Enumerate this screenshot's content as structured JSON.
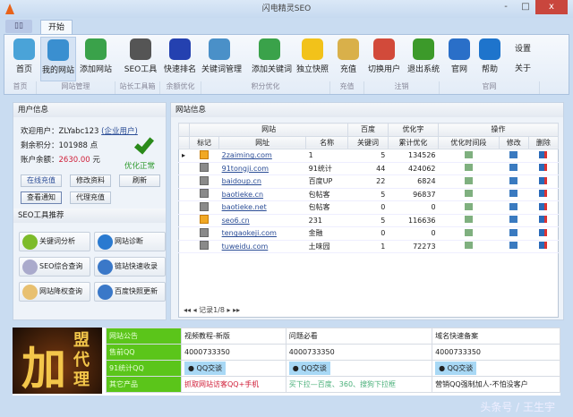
{
  "window": {
    "title": "闪电精灵SEO",
    "minimize": "-",
    "maximize": "□",
    "close": "x"
  },
  "tabs": {
    "file": "▯▯",
    "start": "开始"
  },
  "ribbon": {
    "buttons": [
      {
        "label": "首页",
        "icon": "home-icon",
        "color": "#4aa3d8"
      },
      {
        "label": "我的网站",
        "icon": "globe-icon",
        "color": "#3a8fd0"
      },
      {
        "label": "添加网站",
        "icon": "globe-add-icon",
        "color": "#3aa24a"
      },
      {
        "label": "SEO工具",
        "icon": "tools-icon",
        "color": "#555"
      },
      {
        "label": "快速排名",
        "icon": "baidu-paw-icon",
        "color": "#2441b0"
      },
      {
        "label": "关键词管理",
        "icon": "sitemap-icon",
        "color": "#4a90c8"
      },
      {
        "label": "添加关键词",
        "icon": "globe-add-icon",
        "color": "#3aa24a"
      },
      {
        "label": "独立快照",
        "icon": "star-icon",
        "color": "#f2c21a"
      },
      {
        "label": "充值",
        "icon": "wallet-icon",
        "color": "#d9b04a"
      },
      {
        "label": "切换用户",
        "icon": "users-icon",
        "color": "#d24a3a"
      },
      {
        "label": "退出系统",
        "icon": "exit-icon",
        "color": "#3c9a2a"
      },
      {
        "label": "官网",
        "icon": "ie-icon",
        "color": "#2a6fc8"
      },
      {
        "label": "帮助",
        "icon": "help-icon",
        "color": "#1e74cc"
      }
    ],
    "side": [
      "设置",
      "关于"
    ],
    "groups": [
      "首页",
      "网站管理",
      "站长工具箱",
      "余额优化",
      "积分优化",
      "充值",
      "注销",
      "官网"
    ]
  },
  "user": {
    "title": "用户信息",
    "welcome_label": "欢迎用户：",
    "username": "ZLYabc123",
    "usertype": "(企业用户)",
    "points_label": "剩余积分：",
    "points": "101988 点",
    "balance_label": "账户余额：",
    "balance": "2630.00",
    "balance_unit": "元",
    "status": "优化正常",
    "buttons": [
      "在线充值",
      "修改资料",
      "刷新",
      "查看通知",
      "代理充值"
    ]
  },
  "tools": {
    "title": "SEO工具推荐",
    "items": [
      {
        "label": "关键词分析",
        "color": "#7dbb2a"
      },
      {
        "label": "网站诊断",
        "color": "#2a7ad0"
      },
      {
        "label": "SEO综合查询",
        "color": "#aac"
      },
      {
        "label": "链站快速收录",
        "color": "#3a78c8"
      },
      {
        "label": "网站降权查询",
        "color": "#e8c070"
      },
      {
        "label": "百度快照更新",
        "color": "#3a78c8"
      }
    ]
  },
  "sites": {
    "title": "网站信息",
    "group_headers": [
      "网站",
      "百度",
      "优化字",
      "操作"
    ],
    "columns": [
      "标记",
      "网址",
      "名称",
      "关键词",
      "累计优化",
      "优化时间段",
      "修改",
      "删除"
    ],
    "rows": [
      {
        "gold": true,
        "url": "2zaiming.com",
        "name": "1",
        "kw": "5",
        "total": "134526"
      },
      {
        "gold": false,
        "url": "91tongji.com",
        "name": "91统计",
        "kw": "44",
        "total": "424062"
      },
      {
        "gold": false,
        "url": "baidoup.cn",
        "name": "百度UP",
        "kw": "22",
        "total": "6824"
      },
      {
        "gold": false,
        "url": "baotieke.cn",
        "name": "包帖客",
        "kw": "5",
        "total": "96837"
      },
      {
        "gold": false,
        "url": "baotieke.net",
        "name": "包帖客",
        "kw": "0",
        "total": "0"
      },
      {
        "gold": true,
        "url": "seo6.cn",
        "name": "231",
        "kw": "5",
        "total": "116636"
      },
      {
        "gold": false,
        "url": "tengaokeji.com",
        "name": "金融",
        "kw": "0",
        "total": "0"
      },
      {
        "gold": false,
        "url": "tuweidu.com",
        "name": "土味园",
        "kw": "1",
        "total": "72273"
      }
    ],
    "pager": "记录1/8"
  },
  "ad": {
    "big": "加",
    "small": [
      "盟",
      "代",
      "理"
    ]
  },
  "info": {
    "rows": [
      {
        "label": "网站公告",
        "cells": [
          "视频教程-新版",
          "问题必看",
          "域名快速备案"
        ]
      },
      {
        "label": "售前QQ",
        "cells": [
          "4000733350",
          "4000733350",
          "4000733350"
        ]
      },
      {
        "label": "91统计QQ",
        "cells": [
          "QQ交谈",
          "QQ交谈",
          "QQ交谈"
        ]
      },
      {
        "label": "其它产品",
        "cells": [
          "抓取网站访客QQ+手机",
          "买下拉—百度、360、搜狗下拉框",
          "营销QQ强制加人-不怕没客户"
        ]
      }
    ]
  },
  "watermark": "头条号 / 王生宇"
}
